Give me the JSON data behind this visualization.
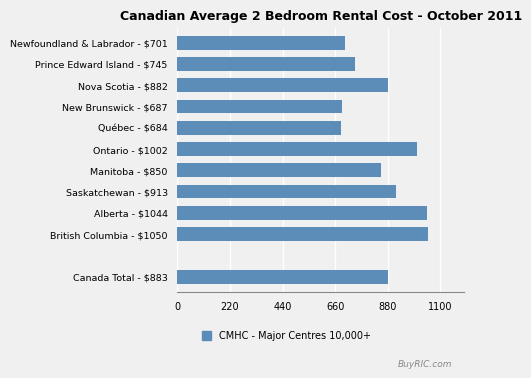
{
  "title": "Canadian Average 2 Bedroom Rental Cost - October 2011",
  "categories": [
    "Newfoundland & Labrador - $701",
    "Prince Edward Island - $745",
    "Nova Scotia - $882",
    "New Brunswick - $687",
    "Québec - $684",
    "Ontario - $1002",
    "Manitoba - $850",
    "Saskatchewan - $913",
    "Alberta - $1044",
    "British Columbia - $1050",
    "",
    "Canada Total - $883"
  ],
  "values": [
    701,
    745,
    882,
    687,
    684,
    1002,
    850,
    913,
    1044,
    1050,
    0,
    883
  ],
  "bar_color": "#5b8db8",
  "xlim": [
    0,
    1200
  ],
  "xticks": [
    0,
    220,
    440,
    660,
    880,
    1100
  ],
  "legend_label": "CMHC - Major Centres 10,000+",
  "background_color": "#f0f0f0",
  "watermark": "BuyRIC.com"
}
